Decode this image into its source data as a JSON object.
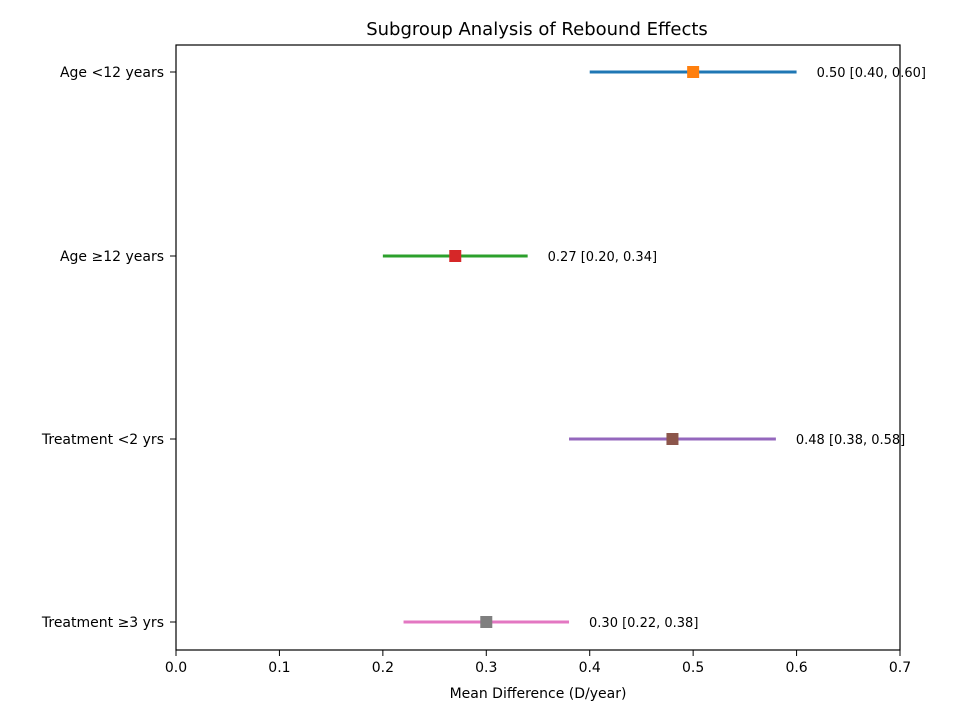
{
  "chart_data": {
    "type": "forest",
    "title": "Subgroup Analysis of Rebound Effects",
    "xlabel": "Mean Difference (D/year)",
    "xlim": [
      0.0,
      0.7
    ],
    "xticks": [
      "0.0",
      "0.1",
      "0.2",
      "0.3",
      "0.4",
      "0.5",
      "0.6",
      "0.7"
    ],
    "grid": false,
    "rows": [
      {
        "label": "Age <12 years",
        "mean": 0.5,
        "lower": 0.4,
        "upper": 0.6,
        "text": "0.50 [0.40, 0.60]",
        "line_color": "#1f77b4",
        "marker_color": "#ff7f0e"
      },
      {
        "label": "Age ≥12 years",
        "mean": 0.27,
        "lower": 0.2,
        "upper": 0.34,
        "text": "0.27 [0.20, 0.34]",
        "line_color": "#2ca02c",
        "marker_color": "#d62728"
      },
      {
        "label": "Treatment <2 yrs",
        "mean": 0.48,
        "lower": 0.38,
        "upper": 0.58,
        "text": "0.48 [0.38, 0.58]",
        "line_color": "#9467bd",
        "marker_color": "#8c564b"
      },
      {
        "label": "Treatment ≥3 yrs",
        "mean": 0.3,
        "lower": 0.22,
        "upper": 0.38,
        "text": "0.30 [0.22, 0.38]",
        "line_color": "#e377c2",
        "marker_color": "#7f7f7f"
      }
    ]
  }
}
